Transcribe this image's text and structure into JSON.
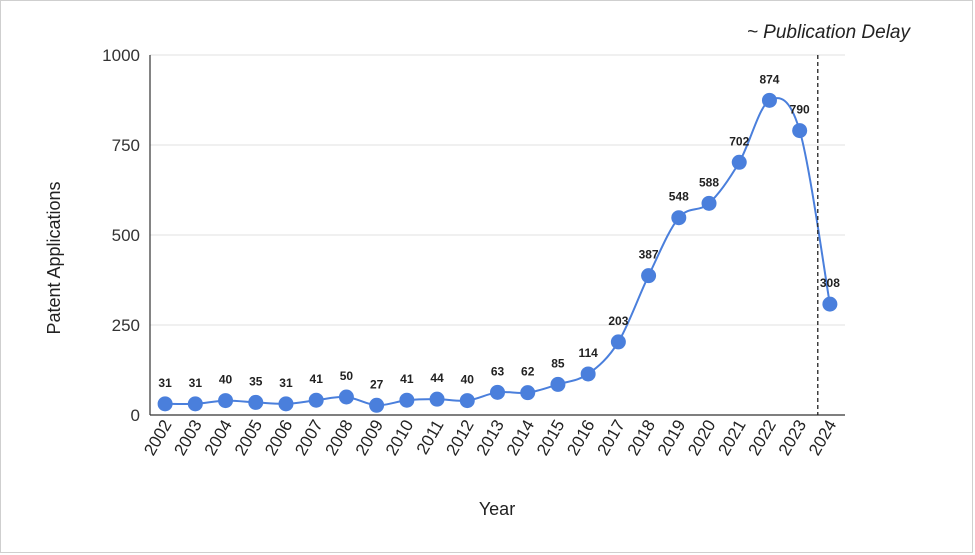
{
  "chart_data": {
    "type": "line",
    "title": "",
    "xlabel": "Year",
    "ylabel": "Patent Applications",
    "ylim": [
      0,
      1000
    ],
    "yticks": [
      0,
      250,
      500,
      750,
      1000
    ],
    "grid": true,
    "x": [
      "2002",
      "2003",
      "2004",
      "2005",
      "2006",
      "2007",
      "2008",
      "2009",
      "2010",
      "2011",
      "2012",
      "2013",
      "2014",
      "2015",
      "2016",
      "2017",
      "2018",
      "2019",
      "2020",
      "2021",
      "2022",
      "2023",
      "2024"
    ],
    "series": [
      {
        "color": "#4a7fdc",
        "values": [
          31,
          31,
          40,
          35,
          31,
          41,
          50,
          27,
          41,
          44,
          40,
          63,
          62,
          85,
          114,
          203,
          387,
          548,
          588,
          702,
          874,
          790,
          308
        ]
      }
    ],
    "annotation": {
      "text": "~ Publication Delay",
      "line_between": [
        "2023",
        "2024"
      ],
      "line_style": "dashed"
    }
  }
}
